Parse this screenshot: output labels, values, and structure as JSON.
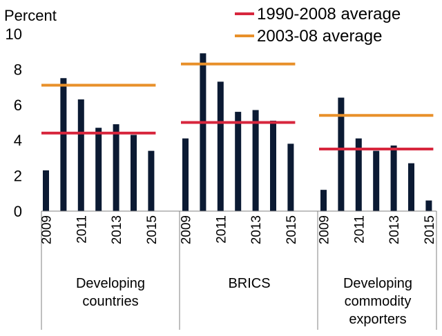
{
  "chart_data": {
    "type": "bar",
    "ylabel": "Percent",
    "ylim": [
      0,
      10
    ],
    "yticks": [
      "0",
      "2",
      "4",
      "6",
      "8",
      "10"
    ],
    "year_labels": [
      "2009",
      "2011",
      "2013",
      "2015"
    ],
    "years": [
      2009,
      2010,
      2011,
      2012,
      2013,
      2014,
      2015
    ],
    "bar_color": "#0b1a33",
    "legend_position": "top-right",
    "groups": [
      {
        "label_lines": [
          "Developing",
          "countries"
        ],
        "values": [
          2.3,
          7.5,
          6.3,
          4.7,
          4.9,
          4.3,
          3.4
        ],
        "avg_1990_2008": 4.4,
        "avg_2003_08": 7.1
      },
      {
        "label_lines": [
          "BRICS"
        ],
        "values": [
          4.1,
          8.9,
          7.3,
          5.6,
          5.7,
          5.1,
          3.8
        ],
        "avg_1990_2008": 5.0,
        "avg_2003_08": 8.3
      },
      {
        "label_lines": [
          "Developing",
          "commodity",
          "exporters"
        ],
        "values": [
          1.2,
          6.4,
          4.1,
          3.4,
          3.7,
          2.7,
          0.6
        ],
        "avg_1990_2008": 3.5,
        "avg_2003_08": 5.4
      }
    ],
    "series": [
      {
        "name": "1990-2008 average",
        "key": "avg_1990_2008",
        "color": "#d7263d"
      },
      {
        "name": "2003-08 average",
        "key": "avg_2003_08",
        "color": "#e8902a"
      }
    ]
  }
}
